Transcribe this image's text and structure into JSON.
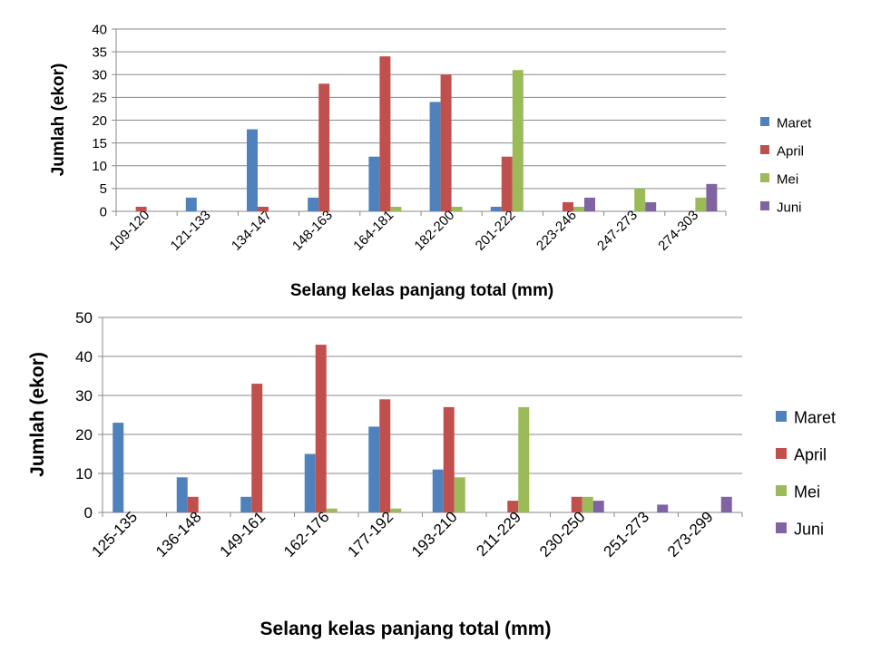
{
  "chart_data": [
    {
      "type": "bar",
      "title": "",
      "xlabel": "Selang kelas panjang total (mm)",
      "ylabel": "Jumlah (ekor)",
      "ylim": [
        0,
        40
      ],
      "yticks": [
        0,
        5,
        10,
        15,
        20,
        25,
        30,
        35,
        40
      ],
      "grid": true,
      "legend_position": "right",
      "categories": [
        "109-120",
        "121-133",
        "134-147",
        "148-163",
        "164-181",
        "182-200",
        "201-222",
        "223-246",
        "247-273",
        "274-303"
      ],
      "series": [
        {
          "name": "Maret",
          "color": "#4F81BD",
          "values": [
            0,
            3,
            18,
            3,
            12,
            24,
            1,
            0,
            0,
            0
          ]
        },
        {
          "name": "April",
          "color": "#C0504D",
          "values": [
            1,
            0,
            1,
            28,
            34,
            30,
            12,
            2,
            0,
            0
          ]
        },
        {
          "name": "Mei",
          "color": "#9BBB59",
          "values": [
            0,
            0,
            0,
            0,
            1,
            1,
            31,
            1,
            5,
            3
          ]
        },
        {
          "name": "Juni",
          "color": "#8064A2",
          "values": [
            0,
            0,
            0,
            0,
            0,
            0,
            0,
            3,
            2,
            6
          ]
        }
      ]
    },
    {
      "type": "bar",
      "title": "",
      "xlabel": "Selang kelas panjang total (mm)",
      "ylabel": "Jumlah (ekor)",
      "ylim": [
        0,
        50
      ],
      "yticks": [
        0,
        10,
        20,
        30,
        40,
        50
      ],
      "grid": true,
      "legend_position": "right",
      "categories": [
        "125-135",
        "136-148",
        "149-161",
        "162-176",
        "177-192",
        "193-210",
        "211-229",
        "230-250",
        "251-273",
        "273-299"
      ],
      "series": [
        {
          "name": "Maret",
          "color": "#4F81BD",
          "values": [
            23,
            9,
            4,
            15,
            22,
            11,
            0,
            0,
            0,
            0
          ]
        },
        {
          "name": "April",
          "color": "#C0504D",
          "values": [
            0,
            4,
            33,
            43,
            29,
            27,
            3,
            4,
            0,
            0
          ]
        },
        {
          "name": "Mei",
          "color": "#9BBB59",
          "values": [
            0,
            0,
            0,
            1,
            1,
            9,
            27,
            4,
            0,
            0
          ]
        },
        {
          "name": "Juni",
          "color": "#8064A2",
          "values": [
            0,
            0,
            0,
            0,
            0,
            0,
            0,
            3,
            2,
            4
          ]
        }
      ]
    }
  ]
}
